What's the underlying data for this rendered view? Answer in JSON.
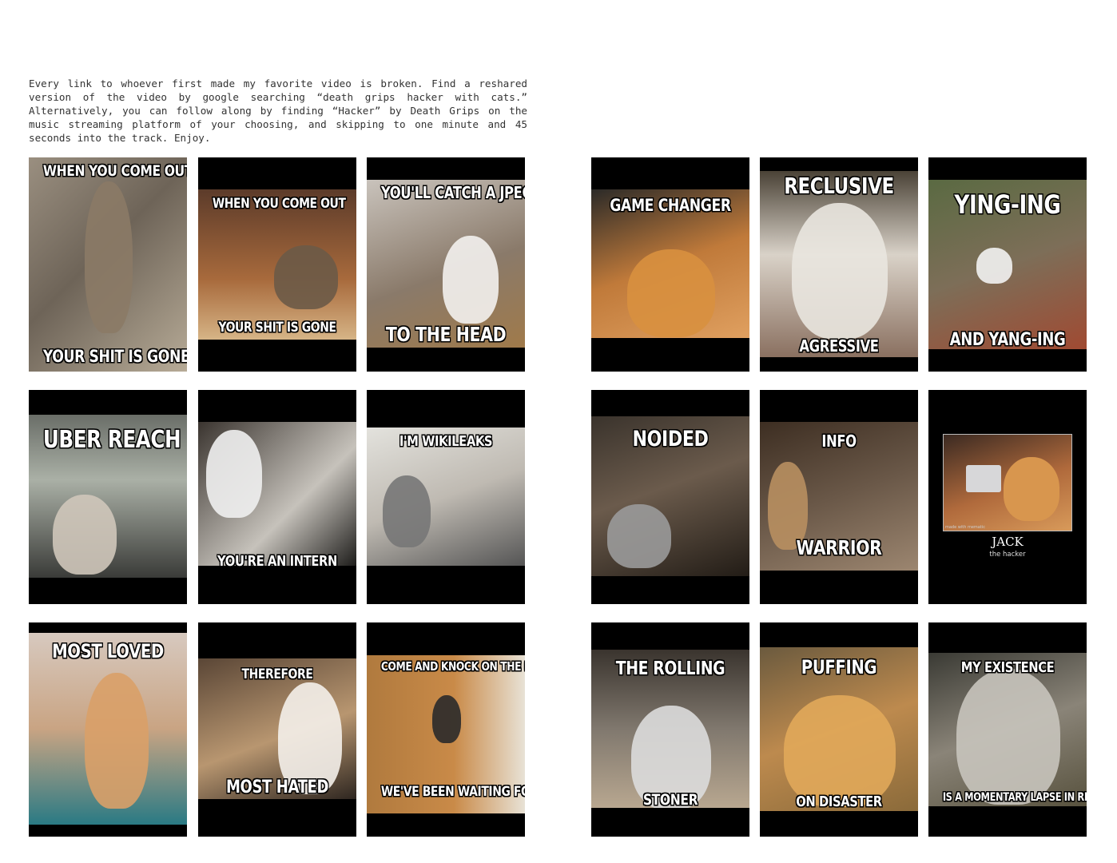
{
  "intro": "Every link to whoever first made my favorite video is broken. Find a reshared version of the video by google searching “death grips hacker with cats.” Alternatively, you can follow along by finding “Hacker” by Death Grips on the music streaming platform of your choosing, and skipping to one minute and 45 seconds into the track. Enjoy.",
  "memes": [
    {
      "top": "WHEN YOU COME OUT",
      "bottom": "YOUR SHIT IS GONE"
    },
    {
      "top": "WHEN YOU COME OUT",
      "bottom": "YOUR SHIT IS GONE"
    },
    {
      "top": "YOU'LL CATCH A JPEG",
      "bottom": "TO THE HEAD"
    },
    {
      "top": "GAME CHANGER",
      "bottom": ""
    },
    {
      "top": "RECLUSIVE",
      "bottom": "AGRESSIVE"
    },
    {
      "top": "YING-ING",
      "bottom": "AND YANG-ING"
    },
    {
      "top": "UBER REACH",
      "bottom": ""
    },
    {
      "top": "",
      "bottom": "YOU'RE AN INTERN"
    },
    {
      "top": "I'M WIKILEAKS",
      "bottom": ""
    },
    {
      "top": "NOIDED",
      "bottom": ""
    },
    {
      "top": "INFO",
      "bottom": "WARRIOR"
    },
    {
      "top": "",
      "bottom": "",
      "title": "JACK",
      "subtitle": "the hacker",
      "mark": "made with mematic"
    },
    {
      "top": "MOST LOVED",
      "bottom": ""
    },
    {
      "top": "THEREFORE",
      "bottom": "MOST HATED"
    },
    {
      "top": "COME AND KNOCK ON THE DOOR",
      "bottom": "WE'VE BEEN WAITING FOR YOU"
    },
    {
      "top": "THE ROLLING",
      "bottom": "STONER"
    },
    {
      "top": "PUFFING",
      "bottom": "ON DISASTER"
    },
    {
      "top": "MY EXISTENCE",
      "bottom": "IS A MOMENTARY LAPSE IN REASON"
    }
  ]
}
